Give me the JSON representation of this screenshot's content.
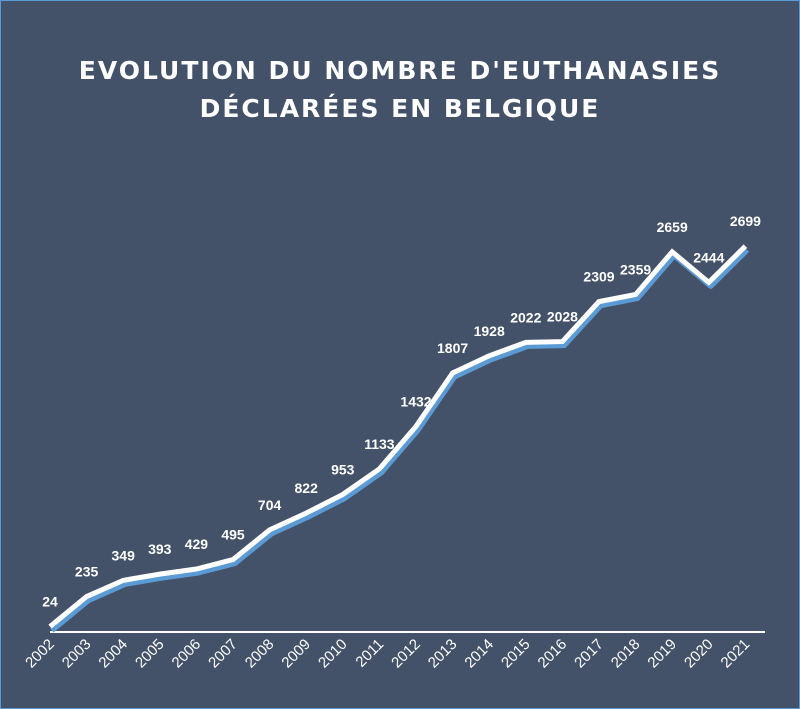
{
  "colors": {
    "background": "#435269",
    "line": "#ffffff",
    "line_shadow": "#5b9bd5",
    "text": "#ffffff"
  },
  "chart_data": {
    "type": "line",
    "title_lines": [
      "EVOLUTION DU NOMBRE D'EUTHANASIES",
      "DÉCLARÉES EN BELGIQUE"
    ],
    "categories": [
      "2002",
      "2003",
      "2004",
      "2005",
      "2006",
      "2007",
      "2008",
      "2009",
      "2010",
      "2011",
      "2012",
      "2013",
      "2014",
      "2015",
      "2016",
      "2017",
      "2018",
      "2019",
      "2020",
      "2021"
    ],
    "values": [
      24,
      235,
      349,
      393,
      429,
      495,
      704,
      822,
      953,
      1133,
      1432,
      1807,
      1928,
      2022,
      2028,
      2309,
      2359,
      2659,
      2444,
      2699
    ],
    "data_labels": [
      "24",
      "235",
      "349",
      "393",
      "429",
      "495",
      "704",
      "822",
      "953",
      "1133",
      "1432",
      "1807",
      "1928",
      "2022",
      "2028",
      "2309",
      "2359",
      "2659",
      "2444",
      "2699"
    ],
    "ylim": [
      0,
      2700
    ],
    "grid": false,
    "legend": "none",
    "drop_lines": true
  }
}
